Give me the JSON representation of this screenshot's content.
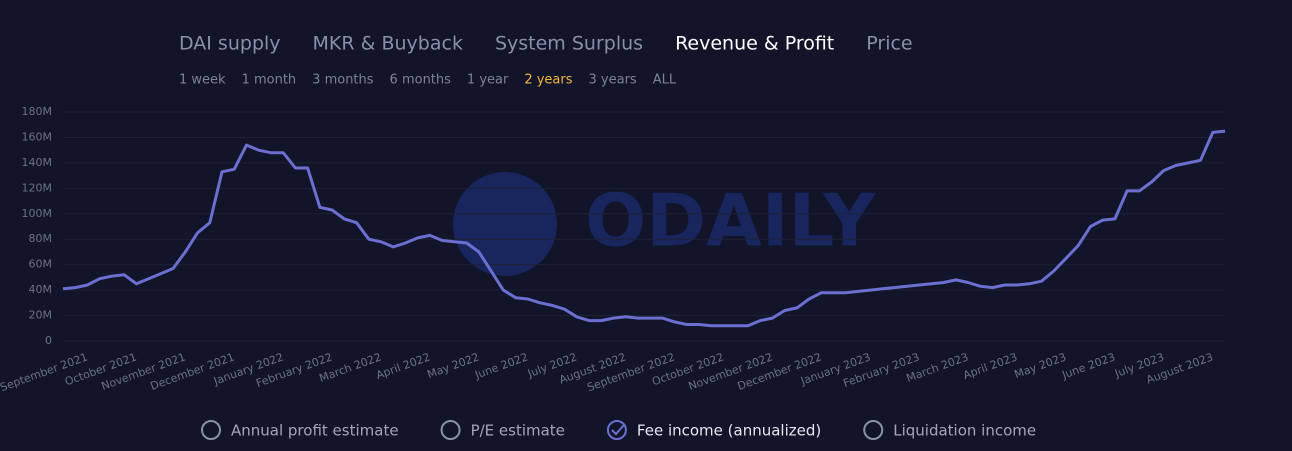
{
  "tabs": [
    {
      "label": "DAI supply",
      "active": false
    },
    {
      "label": "MKR & Buyback",
      "active": false
    },
    {
      "label": "System Surplus",
      "active": false
    },
    {
      "label": "Revenue & Profit",
      "active": true
    },
    {
      "label": "Price",
      "active": false
    }
  ],
  "ranges": [
    {
      "label": "1 week",
      "active": false
    },
    {
      "label": "1 month",
      "active": false
    },
    {
      "label": "3 months",
      "active": false
    },
    {
      "label": "6 months",
      "active": false
    },
    {
      "label": "1 year",
      "active": false
    },
    {
      "label": "2 years",
      "active": true
    },
    {
      "label": "3 years",
      "active": false
    },
    {
      "label": "ALL",
      "active": false
    }
  ],
  "chart_data": {
    "type": "line",
    "watermark": "ODAILY",
    "x": [
      null,
      null,
      "September 2021",
      null,
      null,
      null,
      "October 2021",
      null,
      null,
      null,
      "November 2021",
      null,
      null,
      null,
      "December 2021",
      null,
      null,
      null,
      "January 2022",
      null,
      null,
      null,
      "February 2022",
      null,
      null,
      null,
      "March 2022",
      null,
      null,
      null,
      "April 2022",
      null,
      null,
      null,
      "May 2022",
      null,
      null,
      null,
      "June 2022",
      null,
      null,
      null,
      "July 2022",
      null,
      null,
      null,
      "August 2022",
      null,
      null,
      null,
      "September 2022",
      null,
      null,
      null,
      "October 2022",
      null,
      null,
      null,
      "November 2022",
      null,
      null,
      null,
      "December 2022",
      null,
      null,
      null,
      "January 2023",
      null,
      null,
      null,
      "February 2023",
      null,
      null,
      null,
      "March 2023",
      null,
      null,
      null,
      "April 2023",
      null,
      null,
      null,
      "May 2023",
      null,
      null,
      null,
      "June 2023",
      null,
      null,
      null,
      "July 2023",
      null,
      null,
      null,
      "August 2023",
      null
    ],
    "series": [
      {
        "color": "#6b6fd0",
        "values": [
          41,
          42,
          44,
          49,
          51,
          52,
          45,
          49,
          53,
          57,
          70,
          85,
          93,
          133,
          135,
          154,
          150,
          148,
          148,
          136,
          136,
          105,
          103,
          96,
          93,
          80,
          78,
          74,
          77,
          81,
          83,
          79,
          78,
          77,
          70,
          55,
          40,
          34,
          33,
          30,
          28,
          25,
          19,
          16,
          16,
          18,
          19,
          18,
          18,
          18,
          15,
          13,
          13,
          12,
          12,
          12,
          12,
          16,
          18,
          24,
          26,
          33,
          38,
          38,
          38,
          39,
          40,
          41,
          42,
          43,
          44,
          45,
          46,
          48,
          46,
          43,
          42,
          44,
          44,
          45,
          47,
          55,
          65,
          75,
          90,
          95,
          96,
          118,
          118,
          125,
          134,
          138,
          140,
          142,
          164,
          165
        ]
      }
    ],
    "ylim": [
      0,
      180
    ],
    "yticks": [
      0,
      {
        "value": 20,
        "label": "20M"
      },
      {
        "value": 40,
        "label": "40M"
      },
      {
        "value": 60,
        "label": "60M"
      },
      {
        "value": 80,
        "label": "80M"
      },
      {
        "value": 100,
        "label": "100M"
      },
      {
        "value": 120,
        "label": "120M"
      },
      {
        "value": 140,
        "label": "140M"
      },
      {
        "value": 160,
        "label": "160M"
      },
      {
        "value": 180,
        "label": "180M"
      }
    ],
    "grid": true,
    "legend": [
      {
        "label": "Annual profit estimate",
        "checked": false
      },
      {
        "label": "P/E estimate",
        "checked": false
      },
      {
        "label": "Fee income (annualized)",
        "checked": true
      },
      {
        "label": "Liquidation income",
        "checked": false
      }
    ]
  }
}
